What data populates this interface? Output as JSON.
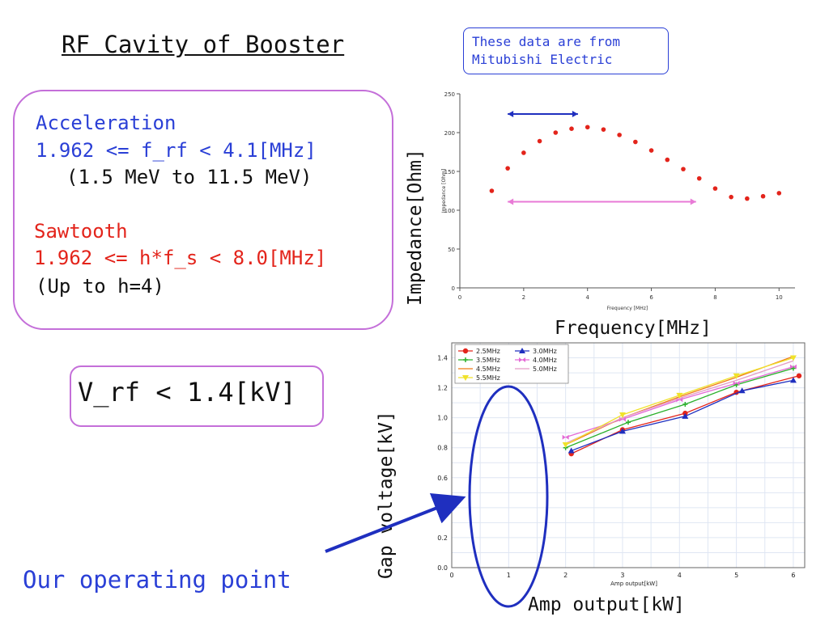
{
  "title": "RF Cavity of Booster",
  "note": [
    "These data are from",
    "Mitubishi Electric"
  ],
  "specs": {
    "accel_heading": "Acceleration",
    "accel_range": "1.962 <= f_rf < 4.1[MHz]",
    "accel_energy": "(1.5 MeV to 11.5 MeV)",
    "saw_heading": "Sawtooth",
    "saw_range": "1.962 <= h*f_s < 8.0[MHz]",
    "saw_note": "(Up to h=4)"
  },
  "vrf": "V_rf < 1.4[kV]",
  "operating_point": "Our operating point",
  "axis_overlays": {
    "impedance_ylabel": "Impedance[Ohm]",
    "frequency_xlabel": "Frequency[MHz]",
    "gap_ylabel": "Gap voltage[kV]",
    "amp_xlabel": "Amp output[kW]"
  },
  "colors": {
    "accent_blue": "#2a3fd6",
    "accent_red": "#e3241b",
    "box_purple": "#c46fd9",
    "arrow_pink": "#e87ad6",
    "arrow_navy": "#1f2fbf"
  },
  "chart_data": [
    {
      "type": "scatter",
      "xlabel": "Frequency [MHz]",
      "ylabel": "Impedance [Ohm]",
      "xlim": [
        0,
        10.5
      ],
      "ylim": [
        0,
        250
      ],
      "xticks": [
        0,
        2,
        4,
        6,
        8,
        10
      ],
      "yticks": [
        0,
        50,
        100,
        150,
        200,
        250
      ],
      "grid": false,
      "color": "#e3241b",
      "x": [
        1.0,
        1.5,
        2.0,
        2.5,
        3.0,
        3.5,
        4.0,
        4.5,
        5.0,
        5.5,
        6.0,
        6.5,
        7.0,
        7.5,
        8.0,
        8.5,
        9.0,
        9.5,
        10.0
      ],
      "y": [
        125,
        154,
        174,
        189,
        200,
        205,
        207,
        204,
        197,
        188,
        177,
        165,
        153,
        141,
        128,
        117,
        115,
        118,
        122
      ],
      "annotations": [
        {
          "type": "double-arrow",
          "from": [
            1.5,
            224
          ],
          "to": [
            3.7,
            224
          ],
          "color": "#1f2fbf"
        },
        {
          "type": "double-arrow",
          "from": [
            1.5,
            111
          ],
          "to": [
            7.4,
            111
          ],
          "color": "#e87ad6"
        }
      ]
    },
    {
      "type": "line",
      "xlabel": "Amp output[kW]",
      "ylabel": "Gap voltage[kV]",
      "xlim": [
        0,
        6.2
      ],
      "ylim": [
        0,
        1.5
      ],
      "xticks": [
        0,
        1,
        2,
        3,
        4,
        5,
        6
      ],
      "yticks": [
        "0.0",
        "0.2",
        "0.4",
        "0.6",
        "0.8",
        "1.0",
        "1.2",
        "1.4"
      ],
      "grid": true,
      "legend": "top-left",
      "series": [
        {
          "name": "2.5MHz",
          "color": "#e3241b",
          "marker": "circle",
          "x": [
            2.1,
            3.0,
            4.1,
            5.0,
            6.1
          ],
          "y": [
            0.76,
            0.92,
            1.03,
            1.17,
            1.28
          ]
        },
        {
          "name": "3.0MHz",
          "color": "#1f2fbf",
          "marker": "triangle",
          "x": [
            2.1,
            3.0,
            4.1,
            5.1,
            6.0
          ],
          "y": [
            0.78,
            0.91,
            1.01,
            1.18,
            1.25
          ]
        },
        {
          "name": "3.5MHz",
          "color": "#2ab02a",
          "marker": "plus",
          "x": [
            2.0,
            3.1,
            4.1,
            5.0,
            6.0
          ],
          "y": [
            0.8,
            0.97,
            1.09,
            1.22,
            1.33
          ]
        },
        {
          "name": "4.0MHz",
          "color": "#e46ad6",
          "marker": "bowtie",
          "x": [
            2.0,
            3.0,
            4.0,
            5.0,
            6.0
          ],
          "y": [
            0.87,
            0.99,
            1.12,
            1.23,
            1.34
          ]
        },
        {
          "name": "4.5MHz",
          "color": "#f07a16",
          "marker": "none",
          "x": [
            2.0,
            3.0,
            4.0,
            5.0,
            6.0
          ],
          "y": [
            0.82,
            1.0,
            1.14,
            1.27,
            1.41
          ]
        },
        {
          "name": "5.0MHz",
          "color": "#e39bc6",
          "marker": "none",
          "x": [
            2.0,
            3.0,
            4.0,
            5.0,
            6.0
          ],
          "y": [
            0.83,
            1.0,
            1.13,
            1.25,
            1.38
          ]
        },
        {
          "name": "5.5MHz",
          "color": "#f0e22a",
          "marker": "triangle-down",
          "x": [
            2.0,
            3.0,
            4.0,
            5.0,
            6.0
          ],
          "y": [
            0.82,
            1.02,
            1.15,
            1.28,
            1.4
          ]
        }
      ]
    }
  ]
}
